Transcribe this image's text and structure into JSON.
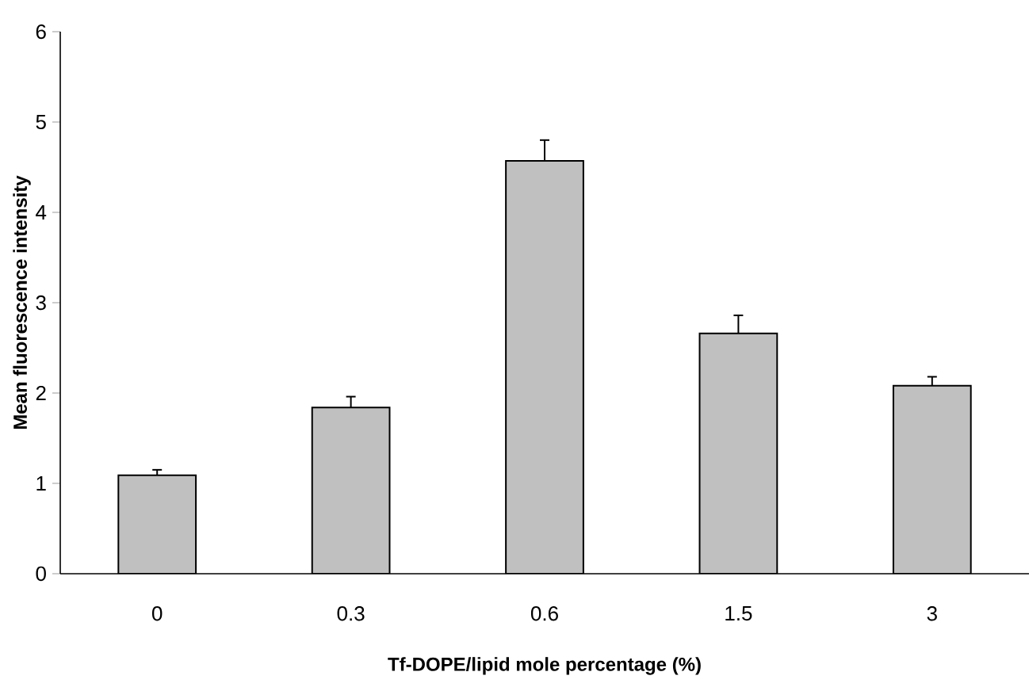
{
  "chart_data": {
    "type": "bar",
    "xlabel": "Tf-DOPE/lipid mole percentage (%)",
    "ylabel": "Mean fluorescence intensity",
    "categories": [
      "0",
      "0.3",
      "0.6",
      "1.5",
      "3"
    ],
    "values": [
      1.09,
      1.84,
      4.57,
      2.66,
      2.08
    ],
    "errors": [
      0.06,
      0.12,
      0.23,
      0.2,
      0.1
    ],
    "color": "#c0c0c0",
    "ylim": [
      0,
      6
    ],
    "yticks": [
      0,
      1,
      2,
      3,
      4,
      5,
      6
    ],
    "grid": false
  }
}
